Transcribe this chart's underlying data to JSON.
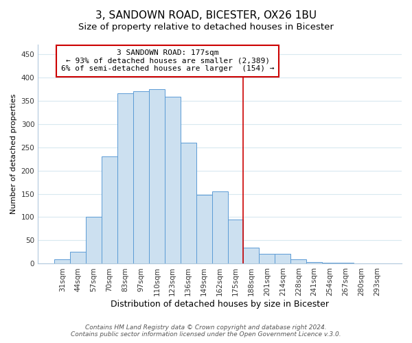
{
  "title": "3, SANDOWN ROAD, BICESTER, OX26 1BU",
  "subtitle": "Size of property relative to detached houses in Bicester",
  "xlabel": "Distribution of detached houses by size in Bicester",
  "ylabel": "Number of detached properties",
  "bar_labels": [
    "31sqm",
    "44sqm",
    "57sqm",
    "70sqm",
    "83sqm",
    "97sqm",
    "110sqm",
    "123sqm",
    "136sqm",
    "149sqm",
    "162sqm",
    "175sqm",
    "188sqm",
    "201sqm",
    "214sqm",
    "228sqm",
    "241sqm",
    "254sqm",
    "267sqm",
    "280sqm",
    "293sqm"
  ],
  "bar_values": [
    10,
    25,
    100,
    230,
    365,
    370,
    375,
    358,
    260,
    148,
    155,
    95,
    35,
    22,
    22,
    10,
    3,
    2,
    2,
    1,
    1
  ],
  "bar_color": "#cce0f0",
  "bar_edge_color": "#5b9bd5",
  "highlight_index": 11,
  "highlight_line_color": "#cc0000",
  "annotation_line1": "3 SANDOWN ROAD: 177sqm",
  "annotation_line2": "← 93% of detached houses are smaller (2,389)",
  "annotation_line3": "6% of semi-detached houses are larger  (154) →",
  "annotation_box_color": "#ffffff",
  "annotation_box_edge_color": "#cc0000",
  "ylim": [
    0,
    470
  ],
  "yticks": [
    0,
    50,
    100,
    150,
    200,
    250,
    300,
    350,
    400,
    450
  ],
  "footer_line1": "Contains HM Land Registry data © Crown copyright and database right 2024.",
  "footer_line2": "Contains public sector information licensed under the Open Government Licence v.3.0.",
  "title_fontsize": 11,
  "subtitle_fontsize": 9.5,
  "xlabel_fontsize": 9,
  "ylabel_fontsize": 8,
  "tick_fontsize": 7.5,
  "footer_fontsize": 6.5,
  "annotation_fontsize": 8,
  "background_color": "#ffffff",
  "grid_color": "#d8e8f0"
}
